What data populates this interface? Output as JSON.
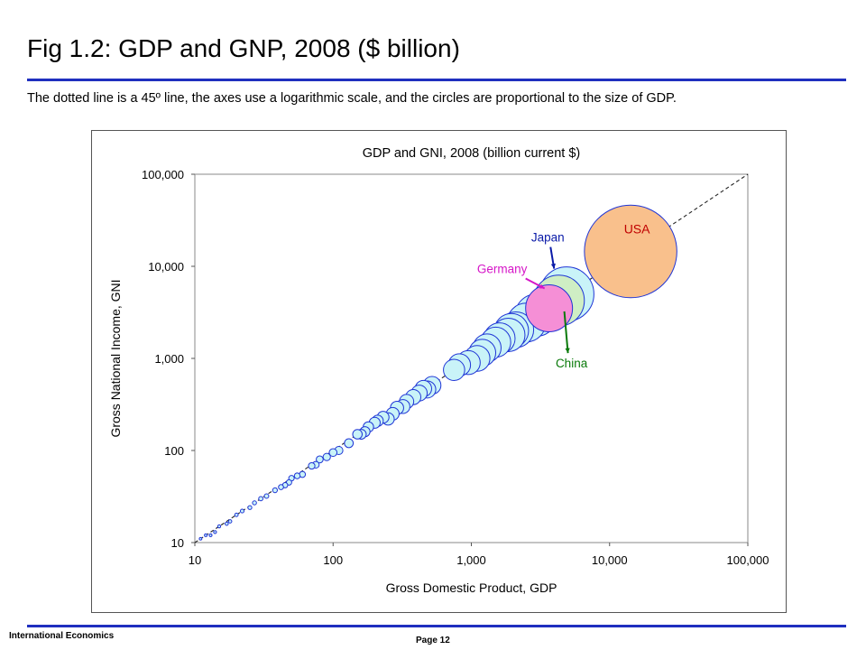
{
  "slide": {
    "title": "Fig 1.2: GDP and GNP, 2008 ($ billion)",
    "subtitle": "The dotted line is a 45º line, the axes use a logarithmic scale, and the circles are proportional to the size of GDP.",
    "footer_left": "International Economics",
    "footer_page": "Page 12"
  },
  "colors": {
    "accent_rule": "#1f2fbf",
    "bubble_stroke": "#1f35d6"
  },
  "chart_data": {
    "type": "scatter",
    "title": "GDP and GNI, 2008 (billion current $)",
    "xlabel": "Gross Domestic Product, GDP",
    "ylabel": "Gross National Income, GNI",
    "xscale": "log",
    "yscale": "log",
    "xlim": [
      10,
      100000
    ],
    "ylim": [
      10,
      100000
    ],
    "x_ticks": [
      10,
      100,
      1000,
      10000,
      100000
    ],
    "y_ticks": [
      10,
      100,
      1000,
      10000,
      100000
    ],
    "x_tick_labels": [
      "10",
      "100",
      "1,000",
      "10,000",
      "100,000"
    ],
    "y_tick_labels": [
      "10",
      "100",
      "1,000",
      "10,000",
      "100,000"
    ],
    "reference_line": "45-degree dashed line",
    "bubble_size": "proportional to GDP",
    "highlighted": [
      {
        "label": "USA",
        "gdp": 14200,
        "gni": 14500,
        "fill": "#f9c08c"
      },
      {
        "label": "Japan",
        "gdp": 4900,
        "gni": 5000,
        "fill": "#c9f3f8",
        "label_color": "#0a1aa8"
      },
      {
        "label": "China",
        "gdp": 4300,
        "gni": 4250,
        "fill": "#cfeec4",
        "label_color": "#0a7a0a"
      },
      {
        "label": "Germany",
        "gdp": 3650,
        "gni": 3500,
        "fill": "#f58fd6",
        "label_color": "#d616c8"
      }
    ],
    "points": [
      [
        2950,
        2950
      ],
      [
        2500,
        2450
      ],
      [
        2100,
        2050
      ],
      [
        1950,
        2000
      ],
      [
        1850,
        1800
      ],
      [
        1600,
        1650
      ],
      [
        1500,
        1500
      ],
      [
        1300,
        1300
      ],
      [
        1200,
        1150
      ],
      [
        1100,
        1000
      ],
      [
        950,
        900
      ],
      [
        820,
        850
      ],
      [
        750,
        750
      ],
      [
        520,
        510
      ],
      [
        480,
        460
      ],
      [
        450,
        470
      ],
      [
        420,
        420
      ],
      [
        380,
        380
      ],
      [
        340,
        340
      ],
      [
        320,
        300
      ],
      [
        290,
        290
      ],
      [
        270,
        250
      ],
      [
        250,
        220
      ],
      [
        230,
        230
      ],
      [
        210,
        210
      ],
      [
        200,
        200
      ],
      [
        180,
        180
      ],
      [
        170,
        160
      ],
      [
        160,
        150
      ],
      [
        150,
        150
      ],
      [
        130,
        120
      ],
      [
        110,
        100
      ],
      [
        100,
        95
      ],
      [
        90,
        85
      ],
      [
        80,
        80
      ],
      [
        75,
        70
      ],
      [
        70,
        68
      ],
      [
        60,
        55
      ],
      [
        55,
        53
      ],
      [
        50,
        50
      ],
      [
        48,
        45
      ],
      [
        45,
        42
      ],
      [
        42,
        40
      ],
      [
        38,
        37
      ],
      [
        33,
        32
      ],
      [
        30,
        30
      ],
      [
        27,
        27
      ],
      [
        25,
        24
      ],
      [
        22,
        22
      ],
      [
        20,
        20
      ],
      [
        18,
        17
      ],
      [
        17,
        16
      ],
      [
        15,
        15
      ],
      [
        14,
        13
      ],
      [
        13,
        12
      ],
      [
        12,
        12
      ],
      [
        11,
        11
      ]
    ]
  }
}
